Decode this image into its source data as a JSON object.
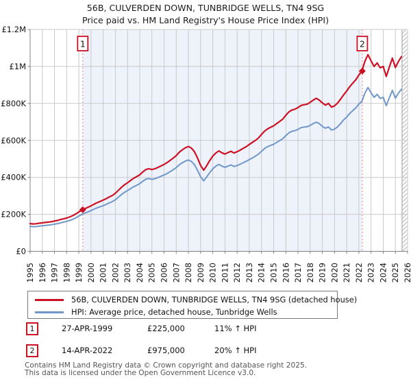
{
  "title": {
    "line1": "56B, CULVERDEN DOWN, TUNBRIDGE WELLS, TN4 9SG",
    "line2": "Price paid vs. HM Land Registry's House Price Index (HPI)"
  },
  "colors": {
    "property_line": "#cc1124",
    "hpi_line": "#6f97c9",
    "sale_dotted_line": "#ee8888",
    "shaded_region": "#eef2fa",
    "gridline": "#c9c9c9",
    "axis_spine": "#808080",
    "hatch_stroke": "#b5b5bd",
    "marker_box_border": "#cc1124",
    "text": "#111111",
    "footer_text": "#555555"
  },
  "chart_data": {
    "type": "line",
    "title": "56B, CULVERDEN DOWN, TUNBRIDGE WELLS, TN4 9SG — Price paid vs. HPI",
    "x_axis": {
      "min": 1995,
      "max": 2026,
      "ticks": [
        1995,
        1996,
        1997,
        1998,
        1999,
        2000,
        2001,
        2002,
        2003,
        2004,
        2005,
        2006,
        2007,
        2008,
        2009,
        2010,
        2011,
        2012,
        2013,
        2014,
        2015,
        2016,
        2017,
        2018,
        2019,
        2020,
        2021,
        2022,
        2023,
        2024,
        2025,
        2026
      ]
    },
    "y_axis": {
      "min": 0,
      "max_thousands": 1200,
      "tick_values_thousands": [
        0,
        200,
        400,
        600,
        800,
        1000,
        1200
      ],
      "tick_labels": [
        "£0",
        "£200K",
        "£400K",
        "£600K",
        "£800K",
        "£1M",
        "£1.2M"
      ]
    },
    "values_unit": "GBP thousands",
    "x_start": 1995,
    "x_step": 0.25,
    "series": [
      {
        "name": "56B, CULVERDEN DOWN, TUNBRIDGE WELLS, TN4 9SG (detached house)",
        "color": "#cc1124",
        "width": 2.2,
        "values": [
          150,
          148,
          149,
          152,
          154,
          156,
          158,
          160,
          164,
          167,
          172,
          176,
          180,
          186,
          193,
          202,
          213,
          223,
          231,
          238,
          246,
          255,
          263,
          270,
          277,
          285,
          294,
          302,
          314,
          330,
          346,
          360,
          371,
          383,
          395,
          404,
          414,
          429,
          442,
          447,
          442,
          447,
          454,
          462,
          470,
          480,
          492,
          504,
          518,
          536,
          549,
          560,
          567,
          558,
          538,
          504,
          465,
          439,
          463,
          491,
          515,
          532,
          543,
          533,
          526,
          534,
          541,
          532,
          539,
          547,
          557,
          566,
          578,
          589,
          600,
          613,
          632,
          650,
          662,
          671,
          679,
          691,
          703,
          715,
          736,
          754,
          764,
          769,
          778,
          789,
          793,
          796,
          806,
          818,
          828,
          818,
          803,
          791,
          800,
          780,
          787,
          802,
          823,
          847,
          867,
          891,
          910,
          928,
          954,
          975,
          1029,
          1064,
          1030,
          1000,
          1019,
          993,
          1000,
          946,
          996,
          1045,
          994,
          1027,
          1053
        ]
      },
      {
        "name": "HPI: Average price, detached house, Tunbridge Wells",
        "color": "#6f97c9",
        "width": 2.0,
        "values": [
          135,
          133,
          134,
          136,
          138,
          140,
          142,
          144,
          147,
          150,
          154,
          158,
          162,
          167,
          173,
          181,
          191,
          200,
          207,
          213,
          220,
          228,
          235,
          241,
          247,
          254,
          262,
          269,
          279,
          293,
          307,
          319,
          329,
          339,
          349,
          357,
          366,
          379,
          390,
          394,
          389,
          393,
          399,
          406,
          413,
          421,
          431,
          441,
          453,
          468,
          479,
          488,
          494,
          486,
          468,
          438,
          404,
          381,
          402,
          426,
          446,
          461,
          470,
          461,
          454,
          461,
          467,
          459,
          464,
          471,
          479,
          487,
          496,
          505,
          515,
          526,
          541,
          556,
          566,
          573,
          579,
          589,
          599,
          609,
          626,
          641,
          649,
          653,
          659,
          669,
          672,
          674,
          681,
          691,
          699,
          691,
          676,
          666,
          673,
          656,
          661,
          673,
          691,
          711,
          726,
          746,
          761,
          776,
          796,
          812,
          857,
          886,
          858,
          833,
          849,
          827,
          833,
          788,
          830,
          871,
          828,
          856,
          877
        ]
      }
    ],
    "sales": [
      {
        "label": "1",
        "x": 1999.32,
        "value_thousands": 225
      },
      {
        "label": "2",
        "x": 2022.28,
        "value_thousands": 975
      }
    ],
    "shaded_region_x": [
      1999.32,
      2022.28
    ],
    "hatch_region_x": [
      2025.55,
      2026.0
    ],
    "legend_position": "bottom",
    "grid": true
  },
  "legend": {
    "items": [
      {
        "label": "56B, CULVERDEN DOWN, TUNBRIDGE WELLS, TN4 9SG (detached house)",
        "color": "#cc1124"
      },
      {
        "label": "HPI: Average price, detached house, Tunbridge Wells",
        "color": "#6f97c9"
      }
    ]
  },
  "transactions": [
    {
      "num": "1",
      "date": "27-APR-1999",
      "price": "£225,000",
      "hpi": "11% ↑ HPI"
    },
    {
      "num": "2",
      "date": "14-APR-2022",
      "price": "£975,000",
      "hpi": "20% ↑ HPI"
    }
  ],
  "footer": {
    "line1": "Contains HM Land Registry data © Crown copyright and database right 2025.",
    "line2": "This data is licensed under the Open Government Licence v3.0."
  }
}
